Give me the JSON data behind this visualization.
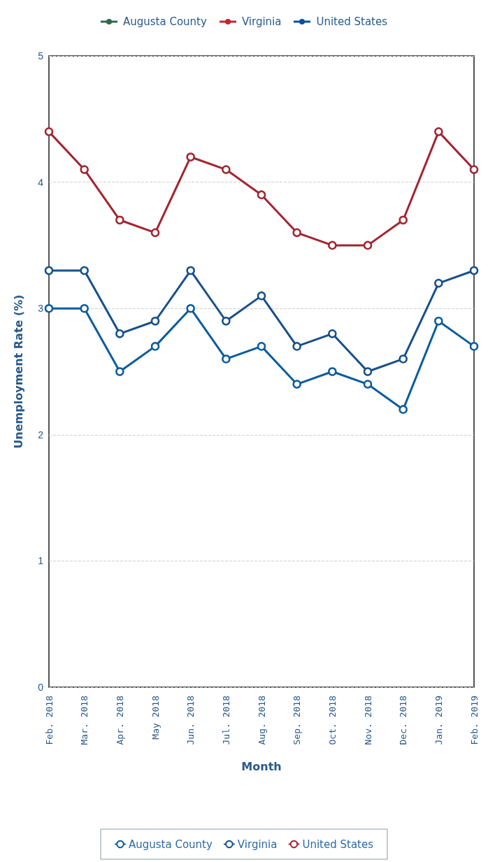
{
  "chart_data": {
    "type": "line",
    "xlabel": "Month",
    "ylabel": "Unemployment Rate (%)",
    "categories": [
      "Feb. 2018",
      "Mar. 2018",
      "Apr. 2018",
      "May 2018",
      "Jun. 2018",
      "Jul. 2018",
      "Aug. 2018",
      "Sep. 2018",
      "Oct. 2018",
      "Nov. 2018",
      "Dec. 2018",
      "Jan. 2019",
      "Feb. 2019"
    ],
    "series": [
      {
        "name": "Augusta County",
        "color": "#0b5c9e",
        "values": [
          3.0,
          3.0,
          2.5,
          2.7,
          3.0,
          2.6,
          2.7,
          2.4,
          2.5,
          2.4,
          2.2,
          2.9,
          2.7
        ]
      },
      {
        "name": "Virginia",
        "color": "#17508a",
        "values": [
          3.3,
          3.3,
          2.8,
          2.9,
          3.3,
          2.9,
          3.1,
          2.7,
          2.8,
          2.5,
          2.6,
          3.2,
          3.3
        ]
      },
      {
        "name": "United States",
        "color": "#a32431",
        "values": [
          4.4,
          4.1,
          3.7,
          3.6,
          4.2,
          4.1,
          3.9,
          3.6,
          3.5,
          3.5,
          3.7,
          4.4,
          4.1
        ]
      }
    ],
    "ylim": [
      0,
      5
    ],
    "yticks": [
      0,
      1,
      2,
      3,
      4,
      5
    ],
    "grid": "y",
    "legend": "bottom",
    "marker": "circle",
    "line_style": "solid",
    "annotations": [
      "Augusta County",
      "Virginia",
      "United States"
    ]
  }
}
